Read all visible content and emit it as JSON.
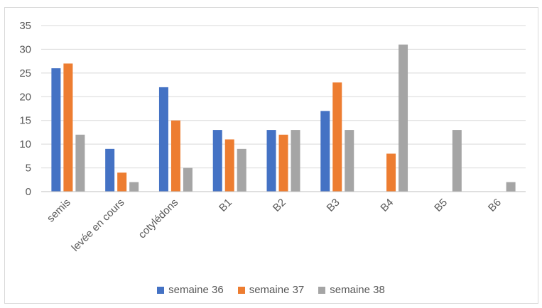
{
  "chart_data": {
    "type": "bar",
    "categories": [
      "semis",
      "levée en cours",
      "cotylédons",
      "B1",
      "B2",
      "B3",
      "B4",
      "B5",
      "B6"
    ],
    "series": [
      {
        "name": "semaine 36",
        "color": "#4472c4",
        "values": [
          26,
          9,
          22,
          13,
          13,
          17,
          0,
          0,
          0
        ]
      },
      {
        "name": "semaine 37",
        "color": "#ed7d31",
        "values": [
          27,
          4,
          15,
          11,
          12,
          23,
          8,
          0,
          0
        ]
      },
      {
        "name": "semaine 38",
        "color": "#a5a5a5",
        "values": [
          12,
          2,
          5,
          9,
          13,
          13,
          31,
          13,
          2
        ]
      }
    ],
    "ylim": [
      0,
      35
    ],
    "yticks": [
      "0",
      "5",
      "10",
      "15",
      "20",
      "25",
      "30",
      "35"
    ],
    "grid": true,
    "legend_position": "bottom"
  }
}
